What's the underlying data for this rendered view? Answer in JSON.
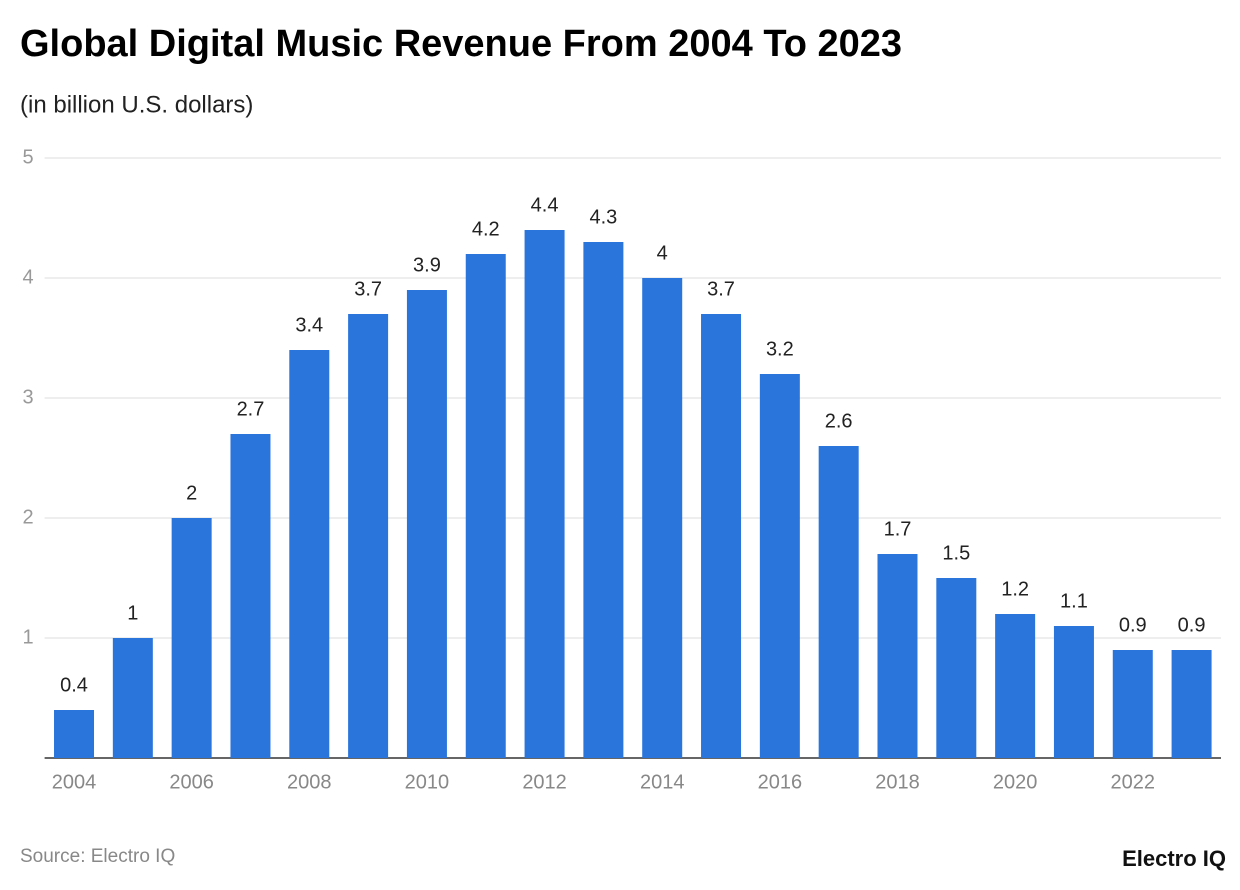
{
  "chart_data": {
    "type": "bar",
    "title": "Global Digital Music Revenue From 2004 To 2023",
    "subtitle": "(in billion U.S. dollars)",
    "categories": [
      "2004",
      null,
      "2006",
      null,
      "2008",
      null,
      "2010",
      null,
      "2012",
      null,
      "2014",
      null,
      "2016",
      null,
      "2018",
      null,
      "2020",
      null,
      "2022",
      null
    ],
    "values": [
      0.4,
      1,
      2,
      2.7,
      3.4,
      3.7,
      3.9,
      4.2,
      4.4,
      4.3,
      4,
      3.7,
      3.2,
      2.6,
      1.7,
      1.5,
      1.2,
      1.1,
      0.9,
      0.9
    ],
    "color": "#2a75dc",
    "ylim": [
      0,
      5
    ],
    "yticks": [
      1,
      2,
      3,
      4,
      5
    ],
    "grid": true,
    "source": "Source: Electro IQ",
    "logo": "Electro IQ"
  }
}
